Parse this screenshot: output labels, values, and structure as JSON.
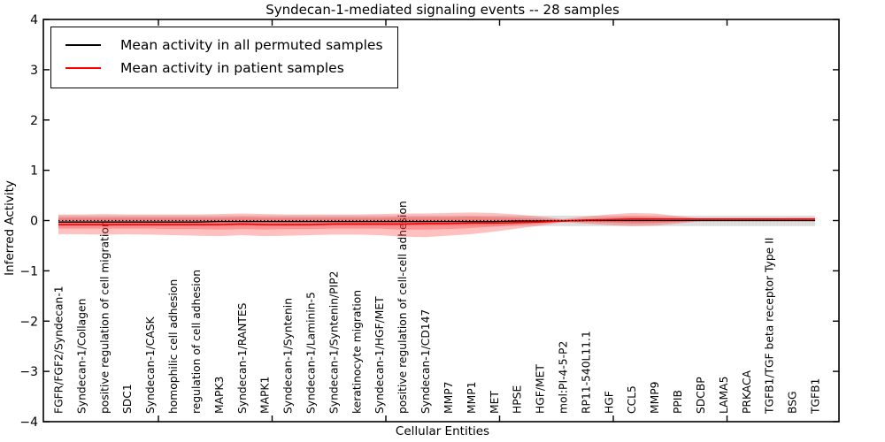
{
  "header": {
    "title": "Syndecan-1-mediated signaling events -- 28 samples"
  },
  "axes": {
    "xlabel": "Cellular Entities",
    "ylabel": "Inferred Activity",
    "ytick_labels": [
      "4",
      "3",
      "2",
      "1",
      "0",
      "−1",
      "−2",
      "−3",
      "−4"
    ],
    "ytick_values": [
      4,
      3,
      2,
      1,
      0,
      -1,
      -2,
      -3,
      -4
    ]
  },
  "legend": {
    "items": [
      {
        "label": "Mean activity in all permuted samples",
        "color": "#000000"
      },
      {
        "label": "Mean activity in patient samples",
        "color": "#ff0000"
      }
    ]
  },
  "chart_data": {
    "type": "line",
    "title": "Syndecan-1-mediated signaling events -- 28 samples",
    "xlabel": "Cellular Entities",
    "ylabel": "Inferred Activity",
    "ylim": [
      -4,
      4
    ],
    "grid": false,
    "legend_position": "upper left",
    "categories": [
      "FGFR/FGF2/Syndecan-1",
      "Syndecan-1/Collagen",
      "positive regulation of cell migration",
      "SDC1",
      "Syndecan-1/CASK",
      "homophilic cell adhesion",
      "regulation of cell adhesion",
      "MAPK3",
      "Syndecan-1/RANTES",
      "MAPK1",
      "Syndecan-1/Syntenin",
      "Syndecan-1/Laminin-5",
      "Syndecan-1/Syntenin/PIP2",
      "keratinocyte migration",
      "Syndecan-1/HGF/MET",
      "positive regulation of cell-cell adhesion",
      "Syndecan-1/CD147",
      "MMP7",
      "MMP1",
      "MET",
      "HPSE",
      "HGF/MET",
      "mol:PI-4-5-P2",
      "RP11-540L11.1",
      "HGF",
      "CCL5",
      "MMP9",
      "PPIB",
      "SDCBP",
      "LAMA5",
      "PRKACA",
      "TGFB1/TGF beta receptor Type II",
      "BSG",
      "TGFB1"
    ],
    "series": [
      {
        "name": "Mean activity in all permuted samples",
        "color": "#000000",
        "style": "solid",
        "values": [
          -0.03,
          -0.03,
          -0.03,
          -0.03,
          -0.03,
          -0.03,
          -0.03,
          -0.02,
          -0.02,
          -0.02,
          -0.02,
          -0.02,
          -0.02,
          -0.02,
          -0.02,
          -0.02,
          -0.02,
          -0.02,
          -0.02,
          -0.02,
          -0.01,
          -0.01,
          -0.01,
          0,
          0,
          0,
          0,
          0,
          0,
          0,
          0,
          0,
          0,
          0
        ]
      },
      {
        "name": "Mean activity in patient samples",
        "color": "#ff0000",
        "style": "solid",
        "values": [
          -0.08,
          -0.08,
          -0.08,
          -0.08,
          -0.08,
          -0.08,
          -0.08,
          -0.08,
          -0.07,
          -0.08,
          -0.08,
          -0.08,
          -0.07,
          -0.07,
          -0.07,
          -0.07,
          -0.06,
          -0.06,
          -0.05,
          -0.05,
          -0.04,
          -0.03,
          -0.01,
          0.01,
          0.02,
          0.03,
          0.03,
          0.03,
          0.03,
          0.03,
          0.03,
          0.03,
          0.03,
          0.03
        ]
      },
      {
        "name": "zero reference",
        "color": "#000000",
        "style": "dotted",
        "values": [
          0,
          0,
          0,
          0,
          0,
          0,
          0,
          0,
          0,
          0,
          0,
          0,
          0,
          0,
          0,
          0,
          0,
          0,
          0,
          0,
          0,
          0,
          0,
          0,
          0,
          0,
          0,
          0,
          0,
          0,
          0,
          0,
          0,
          0
        ]
      }
    ],
    "bands": [
      {
        "name": "permuted activity range",
        "color": "#000000",
        "opacity": 0.13,
        "upper": [
          0.1,
          0.1,
          0.1,
          0.1,
          0.1,
          0.1,
          0.1,
          0.1,
          0.1,
          0.1,
          0.1,
          0.1,
          0.1,
          0.1,
          0.1,
          0.1,
          0.1,
          0.1,
          0.1,
          0.1,
          0.1,
          0.1,
          0.1,
          0.1,
          0.1,
          0.1,
          0.1,
          0.1,
          0.1,
          0.1,
          0.1,
          0.1,
          0.1,
          0.1
        ],
        "lower": [
          -0.11,
          -0.11,
          -0.11,
          -0.11,
          -0.11,
          -0.11,
          -0.11,
          -0.11,
          -0.11,
          -0.11,
          -0.11,
          -0.11,
          -0.11,
          -0.11,
          -0.11,
          -0.11,
          -0.11,
          -0.11,
          -0.11,
          -0.11,
          -0.11,
          -0.11,
          -0.11,
          -0.11,
          -0.11,
          -0.11,
          -0.11,
          -0.11,
          -0.11,
          -0.11,
          -0.11,
          -0.11,
          -0.11,
          -0.11
        ]
      },
      {
        "name": "patient activity outer band",
        "color": "#ff4040",
        "opacity": 0.33,
        "upper": [
          0.12,
          0.12,
          0.13,
          0.12,
          0.12,
          0.12,
          0.12,
          0.13,
          0.14,
          0.13,
          0.12,
          0.12,
          0.12,
          0.12,
          0.13,
          0.14,
          0.14,
          0.15,
          0.16,
          0.15,
          0.12,
          0.08,
          0.03,
          0.08,
          0.12,
          0.15,
          0.14,
          0.09,
          0.04,
          0.04,
          0.04,
          0.04,
          0.05,
          0.05
        ],
        "lower": [
          -0.27,
          -0.27,
          -0.28,
          -0.27,
          -0.28,
          -0.29,
          -0.3,
          -0.31,
          -0.29,
          -0.31,
          -0.3,
          -0.29,
          -0.28,
          -0.28,
          -0.29,
          -0.32,
          -0.33,
          -0.3,
          -0.27,
          -0.22,
          -0.16,
          -0.1,
          -0.03,
          -0.06,
          -0.09,
          -0.11,
          -0.1,
          -0.06,
          -0.01,
          -0.01,
          -0.01,
          -0.01,
          -0.01,
          -0.01
        ]
      },
      {
        "name": "patient activity inner band",
        "color": "#ff4040",
        "opacity": 0.35,
        "upper": [
          0.06,
          0.06,
          0.06,
          0.06,
          0.06,
          0.06,
          0.06,
          0.06,
          0.07,
          0.06,
          0.06,
          0.06,
          0.06,
          0.06,
          0.06,
          0.07,
          0.07,
          0.07,
          0.08,
          0.07,
          0.06,
          0.04,
          0.02,
          0.04,
          0.06,
          0.08,
          0.07,
          0.05,
          0.05,
          0.05,
          0.05,
          0.05,
          0.05,
          0.05
        ],
        "lower": [
          -0.16,
          -0.16,
          -0.16,
          -0.16,
          -0.16,
          -0.17,
          -0.17,
          -0.18,
          -0.17,
          -0.18,
          -0.17,
          -0.17,
          -0.16,
          -0.16,
          -0.16,
          -0.18,
          -0.18,
          -0.17,
          -0.15,
          -0.12,
          -0.09,
          -0.06,
          -0.01,
          -0.03,
          -0.04,
          -0.06,
          -0.05,
          -0.03,
          0.01,
          0.01,
          0.01,
          0.01,
          0.01,
          0.01
        ]
      }
    ]
  }
}
